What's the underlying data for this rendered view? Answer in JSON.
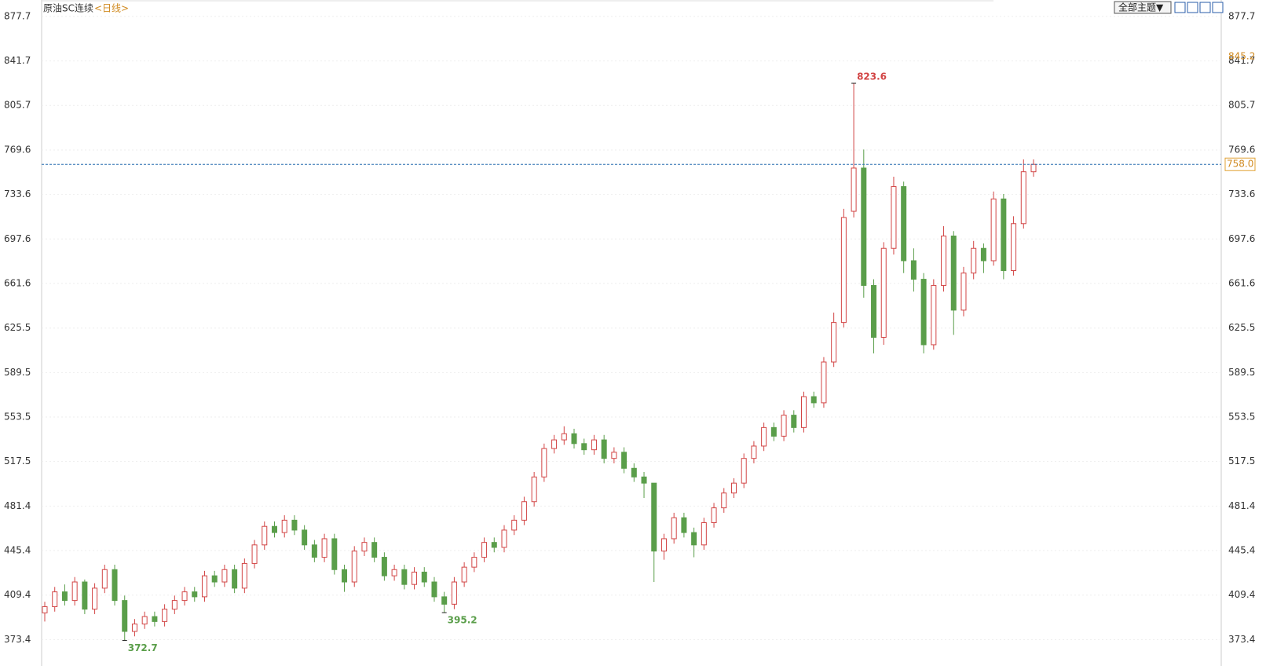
{
  "chart_data": {
    "type": "candlestick",
    "title": "原油SC连续",
    "period": "<日线>",
    "theme_button": "全部主题▼",
    "open": [
      395,
      400,
      412,
      405,
      420,
      398,
      415,
      430,
      405,
      380,
      386,
      392,
      388,
      398,
      405,
      412,
      408,
      425,
      420,
      430,
      415,
      435,
      450,
      465,
      460,
      470,
      462,
      450,
      440,
      455,
      430,
      420,
      445,
      452,
      440,
      425,
      430,
      418,
      428,
      420,
      408,
      402,
      420,
      432,
      440,
      452,
      448,
      462,
      470,
      485,
      505,
      528,
      535,
      540,
      532,
      527,
      535,
      520,
      525,
      512,
      505,
      500,
      445,
      455,
      472,
      460,
      450,
      468,
      480,
      492,
      500,
      520,
      530,
      545,
      538,
      555,
      545,
      570,
      565,
      598,
      630,
      720,
      755,
      660,
      618,
      690,
      740,
      680,
      665,
      612,
      660,
      700,
      640,
      670,
      690,
      680,
      730,
      672,
      710,
      752
    ],
    "high": [
      404,
      416,
      418,
      424,
      422,
      419,
      434,
      434,
      409,
      390,
      396,
      396,
      402,
      409,
      416,
      416,
      429,
      429,
      434,
      434,
      439,
      454,
      469,
      469,
      474,
      474,
      466,
      454,
      459,
      459,
      434,
      449,
      456,
      456,
      444,
      434,
      434,
      432,
      432,
      424,
      412,
      424,
      436,
      444,
      456,
      456,
      466,
      474,
      489,
      509,
      532,
      539,
      546,
      544,
      536,
      539,
      539,
      529,
      529,
      516,
      509,
      500,
      459,
      476,
      476,
      464,
      472,
      484,
      496,
      504,
      524,
      534,
      549,
      549,
      559,
      559,
      574,
      574,
      602,
      638,
      722,
      823.6,
      770,
      665,
      695,
      748,
      744,
      690,
      670,
      665,
      708,
      704,
      675,
      696,
      694,
      736,
      734,
      716,
      762,
      762
    ],
    "low": [
      388,
      396,
      401,
      401,
      394,
      394,
      411,
      401,
      372.7,
      376,
      382,
      384,
      384,
      394,
      401,
      404,
      404,
      416,
      416,
      411,
      411,
      431,
      446,
      456,
      456,
      458,
      446,
      436,
      436,
      426,
      412,
      416,
      441,
      436,
      421,
      421,
      414,
      414,
      416,
      404,
      395.2,
      398,
      416,
      428,
      436,
      444,
      444,
      458,
      466,
      481,
      501,
      524,
      531,
      528,
      523,
      523,
      516,
      516,
      508,
      501,
      488,
      420,
      438,
      451,
      456,
      440,
      446,
      464,
      476,
      488,
      496,
      516,
      526,
      534,
      534,
      541,
      541,
      561,
      561,
      594,
      626,
      715,
      650,
      605,
      612,
      685,
      670,
      655,
      605,
      608,
      655,
      620,
      635,
      665,
      670,
      676,
      665,
      668,
      706,
      748
    ],
    "close": [
      400,
      412,
      405,
      420,
      398,
      415,
      430,
      405,
      380,
      386,
      392,
      388,
      398,
      405,
      412,
      408,
      425,
      420,
      430,
      415,
      435,
      450,
      465,
      460,
      470,
      462,
      450,
      440,
      455,
      430,
      420,
      445,
      452,
      440,
      425,
      430,
      418,
      428,
      420,
      408,
      402,
      420,
      432,
      440,
      452,
      448,
      462,
      470,
      485,
      505,
      528,
      535,
      540,
      532,
      527,
      535,
      520,
      525,
      512,
      505,
      500,
      445,
      455,
      472,
      460,
      450,
      468,
      480,
      492,
      500,
      520,
      530,
      545,
      538,
      555,
      545,
      570,
      565,
      598,
      630,
      715,
      755,
      660,
      618,
      690,
      740,
      680,
      665,
      612,
      660,
      700,
      640,
      670,
      690,
      680,
      730,
      672,
      710,
      752,
      758
    ],
    "up_color": "#d24545",
    "down_color": "#5a9e4a",
    "ylim": [
      352,
      891
    ],
    "yticks": [
      877.7,
      841.7,
      805.7,
      769.6,
      733.6,
      697.6,
      661.6,
      625.5,
      589.5,
      553.5,
      517.5,
      481.4,
      445.4,
      409.4,
      373.4
    ],
    "last_price": {
      "value": 758,
      "label": "758.0"
    },
    "ref_price": 845.2,
    "grid": true
  }
}
